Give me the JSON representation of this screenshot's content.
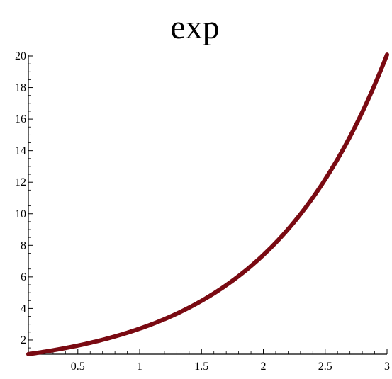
{
  "chart_data": {
    "type": "line",
    "title": "exp",
    "xlabel": "",
    "ylabel": "",
    "xlim": [
      0.1,
      3
    ],
    "ylim": [
      1.1,
      20.09
    ],
    "x_ticks": [
      0.5,
      1,
      1.5,
      2,
      2.5,
      3
    ],
    "x_tick_labels": [
      "0.5",
      "1",
      "1.5",
      "2",
      "2.5",
      "3"
    ],
    "y_ticks": [
      2,
      4,
      6,
      8,
      10,
      12,
      14,
      16,
      18,
      20
    ],
    "y_tick_labels": [
      "2",
      "4",
      "6",
      "8",
      "10",
      "12",
      "14",
      "16",
      "18",
      "20"
    ],
    "grid": false,
    "series": [
      {
        "color": "#7a0a12",
        "x": [
          0.1,
          0.3,
          0.5,
          0.7,
          0.9,
          1.0,
          1.2,
          1.4,
          1.6,
          1.8,
          2.0,
          2.2,
          2.4,
          2.6,
          2.8,
          3.0
        ],
        "y": [
          1.105,
          1.35,
          1.649,
          2.014,
          2.46,
          2.718,
          3.32,
          4.055,
          4.953,
          6.05,
          7.389,
          9.025,
          11.023,
          13.464,
          16.445,
          20.086
        ]
      }
    ]
  }
}
